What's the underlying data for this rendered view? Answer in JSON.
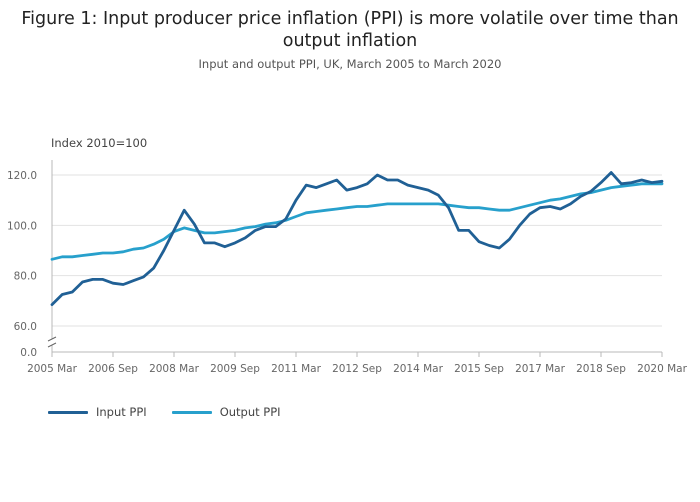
{
  "chart_data": {
    "type": "line",
    "title": "Figure 1: Input producer price inflation (PPI) is more volatile over time than output inflation",
    "subtitle": "Input and output PPI, UK, March 2005 to March 2020",
    "ylabel": "Index 2010=100",
    "xlabel": "",
    "ylim": [
      0,
      130
    ],
    "axis_break": [
      0,
      55
    ],
    "y_ticks": [
      "0.0",
      "60.0",
      "80.0",
      "100.0",
      "120.0"
    ],
    "x_ticks": [
      "2005 Mar",
      "2006 Sep",
      "2008 Mar",
      "2009 Sep",
      "2011 Mar",
      "2012 Sep",
      "2014 Mar",
      "2015 Sep",
      "2017 Mar",
      "2018 Sep",
      "2020 Mar"
    ],
    "grid": true,
    "legend_position": "bottom-left",
    "x_start": "2005 Mar",
    "x_step": "quarter",
    "series": [
      {
        "name": "Input PPI",
        "color": "#206095",
        "values": [
          68.5,
          72.5,
          73.5,
          77.5,
          78.5,
          78.5,
          77.0,
          76.5,
          78.0,
          79.5,
          83.0,
          90.0,
          98.0,
          106.0,
          100.5,
          93.0,
          93.0,
          91.5,
          93.0,
          95.0,
          98.0,
          99.5,
          99.5,
          102.5,
          110.0,
          116.0,
          115.0,
          116.5,
          118.0,
          114.0,
          115.0,
          116.5,
          120.0,
          118.0,
          118.0,
          116.0,
          115.0,
          114.0,
          112.0,
          107.0,
          98.0,
          98.0,
          93.5,
          92.0,
          91.0,
          94.5,
          100.0,
          104.5,
          107.0,
          107.5,
          106.5,
          108.5,
          111.5,
          113.5,
          117.0,
          121.0,
          116.5,
          117.0,
          118.0,
          117.0,
          117.5
        ]
      },
      {
        "name": "Output PPI",
        "color": "#27a0cc",
        "values": [
          86.5,
          87.5,
          87.5,
          88.0,
          88.5,
          89.0,
          89.0,
          89.5,
          90.5,
          91.0,
          92.5,
          94.5,
          97.5,
          99.0,
          98.0,
          97.0,
          97.0,
          97.5,
          98.0,
          99.0,
          99.5,
          100.5,
          101.0,
          102.0,
          103.5,
          105.0,
          105.5,
          106.0,
          106.5,
          107.0,
          107.5,
          107.5,
          108.0,
          108.5,
          108.5,
          108.5,
          108.5,
          108.5,
          108.5,
          108.0,
          107.5,
          107.0,
          107.0,
          106.5,
          106.0,
          106.0,
          107.0,
          108.0,
          109.0,
          110.0,
          110.5,
          111.5,
          112.5,
          113.0,
          114.0,
          115.0,
          115.5,
          116.0,
          116.5,
          116.5,
          116.5
        ]
      }
    ]
  }
}
